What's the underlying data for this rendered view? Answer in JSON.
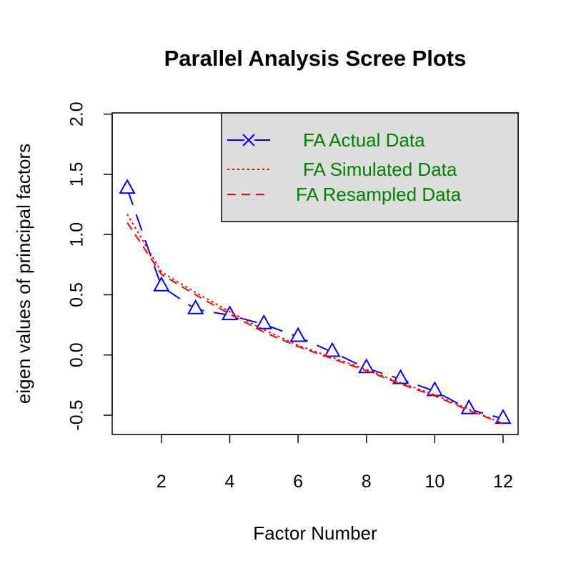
{
  "chart_data": {
    "type": "line",
    "title": "Parallel Analysis Scree Plots",
    "xlabel": "Factor Number",
    "ylabel": "eigen values of principal factors",
    "xlim": [
      0.56,
      12.44
    ],
    "ylim": [
      -0.66,
      2.01
    ],
    "x_ticks": [
      2,
      4,
      6,
      8,
      10,
      12
    ],
    "x_tick_labels": [
      "2",
      "4",
      "6",
      "8",
      "10",
      "12"
    ],
    "y_ticks": [
      -0.5,
      0.0,
      0.5,
      1.0,
      1.5,
      2.0
    ],
    "y_tick_labels": [
      "-0.5",
      "0.0",
      "0.5",
      "1.0",
      "1.5",
      "2.0"
    ],
    "grid": false,
    "legend_position": "top-right",
    "x": [
      1,
      2,
      3,
      4,
      5,
      6,
      7,
      8,
      9,
      10,
      11,
      12
    ],
    "series": [
      {
        "name": "FA  Actual Data",
        "color": "#0000ff",
        "style": "longdash",
        "marker": "triangle",
        "values": [
          1.38,
          0.57,
          0.38,
          0.33,
          0.255,
          0.15,
          0.025,
          -0.11,
          -0.2,
          -0.3,
          -0.45,
          -0.53
        ]
      },
      {
        "name": "FA  Simulated Data",
        "color": "#ff0000",
        "style": "dotted",
        "marker": "none",
        "values": [
          1.17,
          0.69,
          0.52,
          0.36,
          0.21,
          0.08,
          -0.02,
          -0.12,
          -0.23,
          -0.33,
          -0.45,
          -0.57
        ]
      },
      {
        "name": "FA  Resampled Data",
        "color": "#ff0000",
        "style": "dashed",
        "marker": "none",
        "values": [
          1.1,
          0.67,
          0.5,
          0.34,
          0.19,
          0.07,
          -0.03,
          -0.13,
          -0.24,
          -0.34,
          -0.46,
          -0.57
        ]
      }
    ],
    "legend_text_color": "#008000",
    "legend_bg": "#dddddd"
  }
}
